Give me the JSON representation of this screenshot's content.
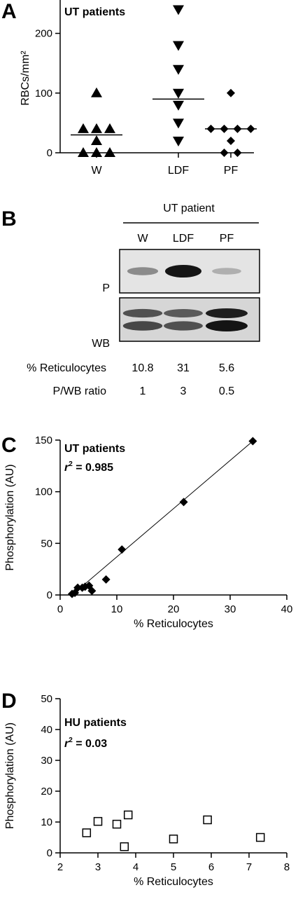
{
  "panels": {
    "A": {
      "letter": "A",
      "inset": "UT patients"
    },
    "B": {
      "letter": "B",
      "header": "UT patient",
      "lanes": [
        "W",
        "LDF",
        "PF"
      ],
      "row_labels": {
        "p": "P",
        "wb": "WB"
      },
      "table": [
        {
          "label": "% Reticulocytes",
          "values": [
            "10.8",
            "31",
            "5.6"
          ]
        },
        {
          "label": "P/WB ratio",
          "values": [
            "1",
            "3",
            "0.5"
          ]
        }
      ],
      "p_band_intensity": [
        0.35,
        1.0,
        0.15
      ],
      "wb_band_intensity": [
        0.7,
        0.65,
        1.0
      ]
    },
    "C": {
      "letter": "C",
      "inset": "UT patients",
      "r2_label": "r",
      "r2_sup": "2",
      "r2_value": " = 0.985"
    },
    "D": {
      "letter": "D",
      "inset": "HU patients",
      "r2_label": "r",
      "r2_sup": "2",
      "r2_value": " = 0.03"
    }
  },
  "chart_data": [
    {
      "id": "A",
      "type": "scatter",
      "categories": [
        "W",
        "LDF",
        "PF"
      ],
      "ylabel": "RBCs/mm²",
      "ylim": [
        0,
        250
      ],
      "yticks": [
        0,
        100,
        200
      ],
      "series": [
        {
          "category": "W",
          "marker": "triangle-up",
          "values": [
            100,
            40,
            40,
            40,
            20,
            0,
            0,
            0
          ],
          "median": 30
        },
        {
          "category": "LDF",
          "marker": "triangle-down",
          "values": [
            240,
            180,
            140,
            100,
            80,
            50,
            20
          ],
          "median": 90
        },
        {
          "category": "PF",
          "marker": "diamond",
          "values": [
            100,
            40,
            40,
            40,
            40,
            20,
            0,
            0
          ],
          "median": 40
        }
      ]
    },
    {
      "id": "C",
      "type": "scatter",
      "xlabel": "% Reticulocytes",
      "ylabel": "Phosphorylation (AU)",
      "xlim": [
        0,
        40
      ],
      "ylim": [
        0,
        150
      ],
      "xticks": [
        0,
        10,
        20,
        30,
        40
      ],
      "yticks": [
        0,
        50,
        100,
        150
      ],
      "marker": "diamond",
      "points": [
        [
          2.1,
          1
        ],
        [
          2.6,
          2
        ],
        [
          3.1,
          7
        ],
        [
          3.9,
          7
        ],
        [
          4.4,
          8
        ],
        [
          5.1,
          9
        ],
        [
          5.6,
          4
        ],
        [
          8.1,
          15
        ],
        [
          10.9,
          44
        ],
        [
          21.8,
          90
        ],
        [
          34.0,
          149
        ]
      ],
      "fit": [
        [
          2.1,
          0
        ],
        [
          34.0,
          149
        ]
      ]
    },
    {
      "id": "D",
      "type": "scatter",
      "xlabel": "% Reticulocytes",
      "ylabel": "Phosphorylation (AU)",
      "xlim": [
        2,
        8
      ],
      "ylim": [
        0,
        50
      ],
      "xticks": [
        2,
        3,
        4,
        5,
        6,
        7,
        8
      ],
      "yticks": [
        0,
        10,
        20,
        30,
        40,
        50
      ],
      "marker": "square-open",
      "points": [
        [
          2.7,
          6.5
        ],
        [
          3.0,
          10.2
        ],
        [
          3.5,
          9.3
        ],
        [
          3.7,
          2.0
        ],
        [
          3.8,
          12.3
        ],
        [
          5.0,
          4.5
        ],
        [
          5.9,
          10.7
        ],
        [
          7.3,
          5.0
        ]
      ]
    }
  ]
}
